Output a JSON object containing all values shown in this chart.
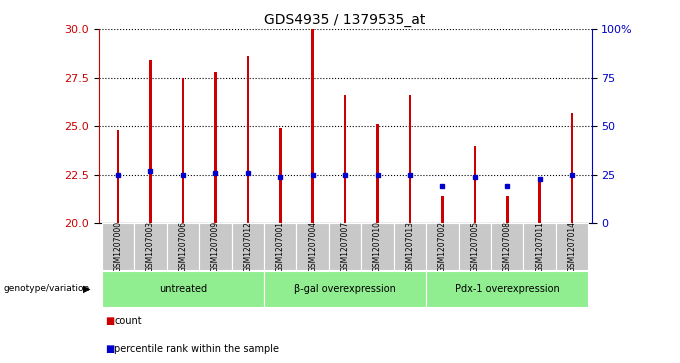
{
  "title": "GDS4935 / 1379535_at",
  "samples": [
    "GSM1207000",
    "GSM1207003",
    "GSM1207006",
    "GSM1207009",
    "GSM1207012",
    "GSM1207001",
    "GSM1207004",
    "GSM1207007",
    "GSM1207010",
    "GSM1207013",
    "GSM1207002",
    "GSM1207005",
    "GSM1207008",
    "GSM1207011",
    "GSM1207014"
  ],
  "counts": [
    24.8,
    28.4,
    27.5,
    27.8,
    28.6,
    24.9,
    30.0,
    26.6,
    25.1,
    26.6,
    21.4,
    24.0,
    21.4,
    22.1,
    25.7
  ],
  "percentiles": [
    22.5,
    22.7,
    22.5,
    22.6,
    22.6,
    22.4,
    22.5,
    22.5,
    22.5,
    22.5,
    21.9,
    22.4,
    21.9,
    22.3,
    22.5
  ],
  "groups": [
    {
      "label": "untreated",
      "start": 0,
      "end": 5
    },
    {
      "label": "β-gal overexpression",
      "start": 5,
      "end": 10
    },
    {
      "label": "Pdx-1 overexpression",
      "start": 10,
      "end": 15
    }
  ],
  "bar_color": "#cc0000",
  "dot_color": "#0000cc",
  "ymin": 20,
  "ymax": 30,
  "yticks": [
    20,
    22.5,
    25,
    27.5,
    30
  ],
  "right_yticks": [
    0,
    25,
    50,
    75,
    100
  ],
  "group_bg_color": "#90ee90",
  "sample_bg_color": "#c8c8c8",
  "legend_label_count": "count",
  "legend_label_percentile": "percentile rank within the sample",
  "xlabel_left": "genotype/variation"
}
